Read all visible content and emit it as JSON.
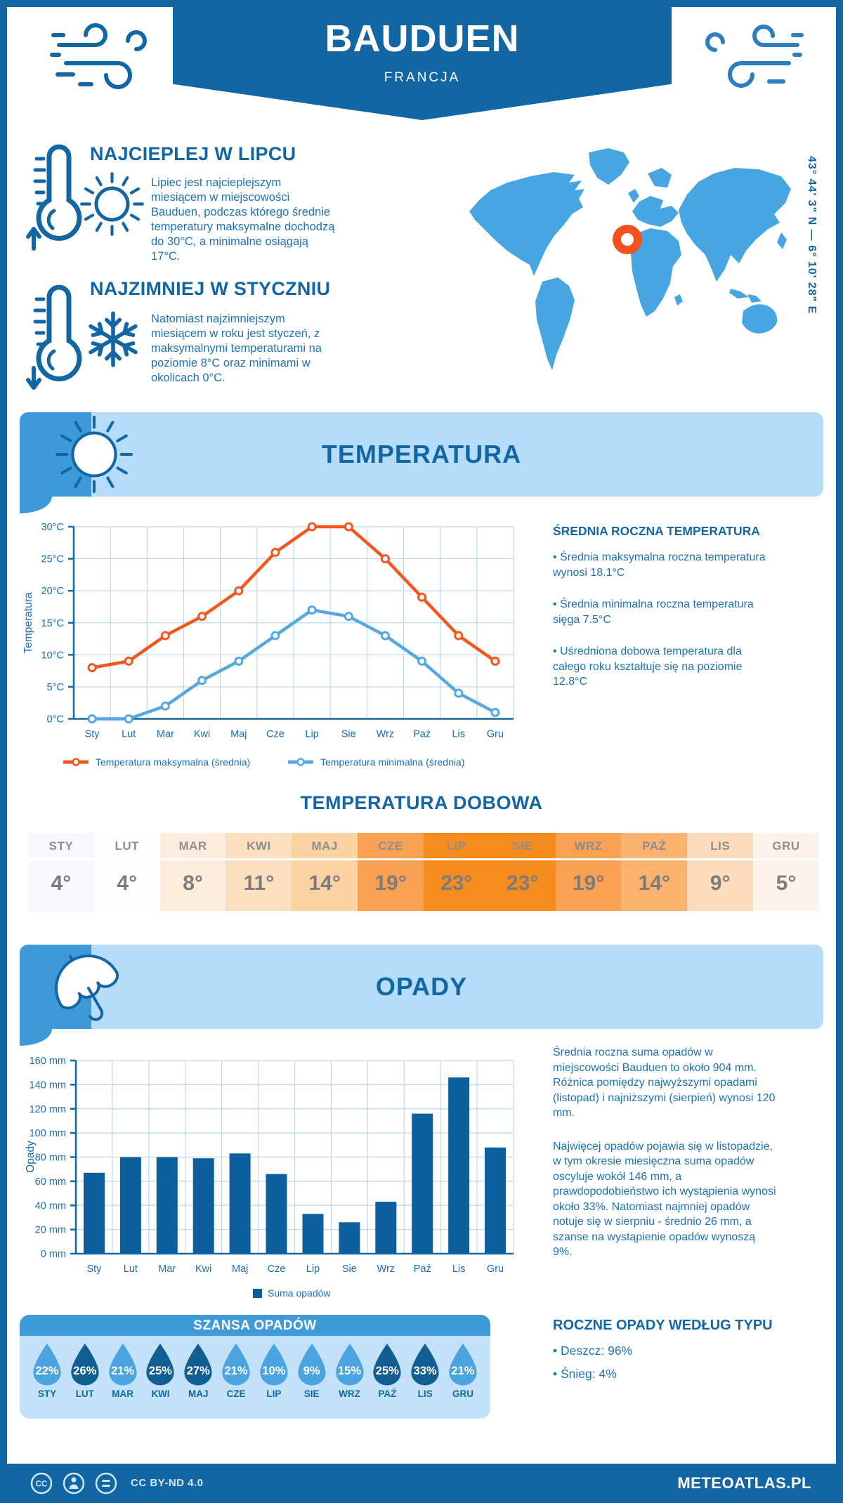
{
  "header": {
    "title": "BAUDUEN",
    "subtitle": "FRANCJA"
  },
  "location": {
    "coordinates": "43° 44' 3\" N — 6° 10' 28\" E",
    "marker_color": "#f4511e",
    "map_color": "#47a5e2"
  },
  "highlights": {
    "warmest": {
      "title": "NAJCIEPLEJ W LIPCU",
      "text": "Lipiec jest najcieplejszym miesiącem w miejscowości Bauduen, podczas którego średnie temperatury maksymalne dochodzą do 30°C, a minimalne osiągają 17°C."
    },
    "coldest": {
      "title": "NAJZIMNIEJ W STYCZNIU",
      "text": "Natomiast najzimniejszym miesiącem w roku jest styczeń, z maksymalnymi temperaturami na poziomie 8°C oraz minimami w okolicach 0°C."
    }
  },
  "temperature": {
    "banner": "TEMPERATURA",
    "stats_title": "ŚREDNIA ROCZNA TEMPERATURA",
    "stats": [
      "• Średnia maksymalna roczna temperatura wynosi 18.1°C",
      "• Średnia minimalna roczna temperatura sięga 7.5°C",
      "• Uśredniona dobowa temperatura dla całego roku kształtuje się na poziomie 12.8°C"
    ],
    "daily_title": "TEMPERATURA DOBOWA",
    "daily": {
      "months": [
        "STY",
        "LUT",
        "MAR",
        "KWI",
        "MAJ",
        "CZE",
        "LIP",
        "SIE",
        "WRZ",
        "PAŹ",
        "LIS",
        "GRU"
      ],
      "values": [
        "4°",
        "4°",
        "8°",
        "11°",
        "14°",
        "19°",
        "23°",
        "23°",
        "19°",
        "14°",
        "9°",
        "5°"
      ],
      "colors": [
        "#f7f7fd",
        "#fefefe",
        "#fdecdb",
        "#fcdfc1",
        "#fbd2a2",
        "#f9a152",
        "#f78c1e",
        "#f78c1e",
        "#f9a152",
        "#fab26e",
        "#fcdcbc",
        "#fdf3ea"
      ]
    }
  },
  "precipitation": {
    "banner": "OPADY",
    "paragraph1": "Średnia roczna suma opadów w miejscowości Bauduen to około 904 mm. Różnica pomiędzy najwyższymi opadami (listopad) i najniższymi (sierpień) wynosi 120 mm.",
    "paragraph2": "Najwięcej opadów pojawia się w listopadzie, w tym okresie miesięczna suma opadów oscyluje wokół 146 mm, a prawdopodobieństwo ich wystąpienia wynosi około 33%. Natomiast najmniej opadów notuje się w sierpniu - średnio 26 mm, a szanse na wystąpienie opadów wynoszą 9%.",
    "chance": {
      "title": "SZANSA OPADÓW",
      "months": [
        "STY",
        "LUT",
        "MAR",
        "KWI",
        "MAJ",
        "CZE",
        "LIP",
        "SIE",
        "WRZ",
        "PAŹ",
        "LIS",
        "GRU"
      ],
      "values": [
        "22%",
        "26%",
        "21%",
        "25%",
        "27%",
        "21%",
        "10%",
        "9%",
        "15%",
        "25%",
        "33%",
        "21%"
      ],
      "dark": [
        false,
        true,
        false,
        true,
        true,
        false,
        false,
        false,
        false,
        true,
        true,
        false
      ],
      "light_color": "#4ba4df",
      "dark_color": "#115e93"
    },
    "type_title": "ROCZNE OPADY WEDŁUG TYPU",
    "types": [
      "• Deszcz: 96%",
      "• Śnieg: 4%"
    ]
  },
  "chart_data": [
    {
      "type": "line",
      "title": "Temperatura",
      "categories": [
        "Sty",
        "Lut",
        "Mar",
        "Kwi",
        "Maj",
        "Cze",
        "Lip",
        "Sie",
        "Wrz",
        "Paź",
        "Lis",
        "Gru"
      ],
      "series": [
        {
          "name": "Temperatura maksymalna (średnia)",
          "color": "#f4571e",
          "values": [
            8,
            9,
            13,
            16,
            20,
            26,
            30,
            30,
            25,
            19,
            13,
            9
          ]
        },
        {
          "name": "Temperatura minimalna (średnia)",
          "color": "#55a8e2",
          "values": [
            0,
            0,
            2,
            6,
            9,
            13,
            17,
            16,
            13,
            9,
            4,
            1
          ]
        }
      ],
      "xlabel": "",
      "ylabel": "Temperatura",
      "ylim": [
        0,
        30
      ],
      "ytick_step": 5,
      "ytick_suffix": "°C",
      "grid": true,
      "legend_position": "bottom"
    },
    {
      "type": "bar",
      "title": "Opady",
      "categories": [
        "Sty",
        "Lut",
        "Mar",
        "Kwi",
        "Maj",
        "Cze",
        "Lip",
        "Sie",
        "Wrz",
        "Paź",
        "Lis",
        "Gru"
      ],
      "series_name": "Suma opadów",
      "bar_color": "#0e5f9e",
      "values": [
        67,
        80,
        80,
        79,
        83,
        66,
        33,
        26,
        43,
        116,
        146,
        88
      ],
      "xlabel": "",
      "ylabel": "Opady",
      "ylim": [
        0,
        160
      ],
      "ytick_step": 20,
      "ytick_suffix": " mm",
      "grid": true,
      "legend_position": "bottom"
    }
  ],
  "footer": {
    "license": "CC BY-ND 4.0",
    "site": "METEOATLAS.PL"
  },
  "colors": {
    "primary": "#1366a4",
    "accent_light": "#b5dcf8",
    "corner_blue": "#3e99d9",
    "body_text": "#1d72b6",
    "panel_blue": "#c3e2f9",
    "panel_header": "#3f9ad8"
  }
}
